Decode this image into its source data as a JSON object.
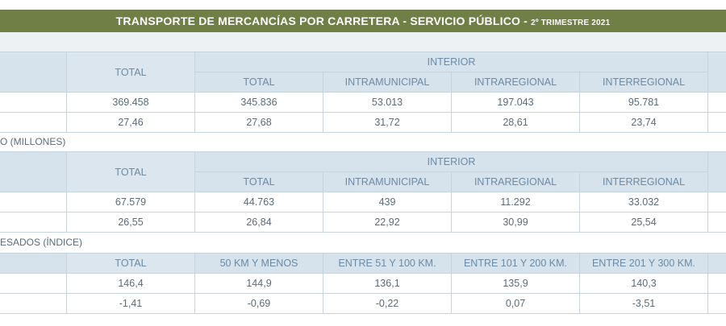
{
  "title": {
    "main": "TRANSPORTE DE MERCANCÍAS POR CARRETERA - SERVICIO PÚBLICO - ",
    "sub": "2º TRIMESTRE 2021"
  },
  "section1": {
    "col_total": "TOTAL",
    "group": "INTERIOR",
    "subcols": [
      "TOTAL",
      "INTRAMUNICIPAL",
      "INTRAREGIONAL",
      "INTERREGIONAL"
    ],
    "rows": [
      [
        "369.458",
        "345.836",
        "53.013",
        "197.043",
        "95.781"
      ],
      [
        "27,46",
        "27,68",
        "31,72",
        "28,61",
        "23,74"
      ]
    ]
  },
  "section2": {
    "label": "O (MILLONES)",
    "col_total": "TOTAL",
    "group": "INTERIOR",
    "subcols": [
      "TOTAL",
      "INTRAMUNICIPAL",
      "INTRAREGIONAL",
      "INTERREGIONAL"
    ],
    "rows": [
      [
        "67.579",
        "44.763",
        "439",
        "11.292",
        "33.032"
      ],
      [
        "26,55",
        "26,84",
        "22,92",
        "30,99",
        "25,54"
      ]
    ]
  },
  "section3": {
    "label": "ESADOS (ÍNDICE)",
    "cols": [
      "TOTAL",
      "50 KM Y MENOS",
      "ENTRE 51 Y 100 KM.",
      "ENTRE 101 Y 200 KM.",
      "ENTRE 201 Y 300 KM."
    ],
    "rows": [
      [
        "146,4",
        "144,9",
        "136,1",
        "135,9",
        "140,3"
      ],
      [
        "-1,41",
        "-0,69",
        "-0,22",
        "0,07",
        "-3,51"
      ]
    ]
  }
}
